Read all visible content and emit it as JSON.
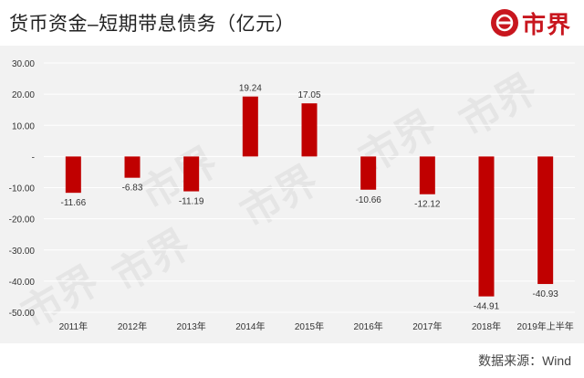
{
  "header": {
    "title": "货币资金–短期带息债务（亿元）",
    "logo_text": "市界"
  },
  "footer": {
    "source": "数据来源：Wind"
  },
  "watermark_text": "市界",
  "colors": {
    "bar": "#c00000",
    "plot_bg": "#f2f2f2",
    "grid": "#ffffff",
    "brand": "#c8161e"
  },
  "chart_data": {
    "type": "bar",
    "title": "货币资金–短期带息债务（亿元）",
    "categories": [
      "2011年",
      "2012年",
      "2013年",
      "2014年",
      "2015年",
      "2016年",
      "2017年",
      "2018年",
      "2019年上半年"
    ],
    "values": [
      -11.66,
      -6.83,
      -11.19,
      19.24,
      17.05,
      -10.66,
      -12.12,
      -44.91,
      -40.93
    ],
    "data_labels": [
      "-11.66",
      "-6.83",
      "-11.19",
      "19.24",
      "17.05",
      "-10.66",
      "-12.12",
      "-44.91",
      "-40.93"
    ],
    "y_ticks": [
      30,
      20,
      10,
      0,
      -10,
      -20,
      -30,
      -40,
      -50
    ],
    "y_tick_labels": [
      "30.00",
      "20.00",
      "10.00",
      "-",
      "-10.00",
      "-20.00",
      "-30.00",
      "-40.00",
      "-50.00"
    ],
    "ylim": [
      -50,
      30
    ],
    "grid": true,
    "legend": false
  }
}
